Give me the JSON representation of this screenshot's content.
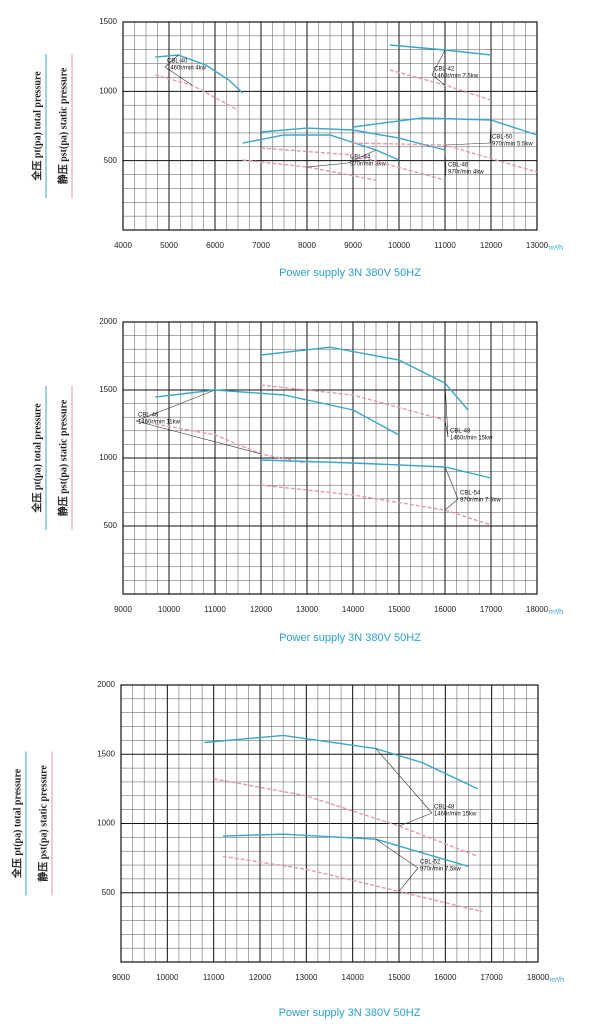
{
  "chart_data": [
    {
      "type": "line",
      "xlabel": "Power supply  3N 380V  50HZ",
      "xunit": "m³/h",
      "ylabels": [
        "全压 pt(pa)  total pressure",
        "静压 pst(pa) static pressure"
      ],
      "total_color": "#3aa6c8",
      "static_color": "#e39aa8",
      "xlim": [
        4000,
        13000
      ],
      "xticks": [
        4000,
        5000,
        6000,
        7000,
        8000,
        9000,
        10000,
        11000,
        12000,
        13000
      ],
      "ylim": [
        0,
        1500
      ],
      "yticks": [
        500,
        1000,
        1500
      ],
      "grid": true,
      "series": [
        {
          "name": "CBL-40",
          "note": "1460r/min 4kw",
          "total": {
            "x": [
              4700,
              5200,
              5800,
              6300,
              6600
            ],
            "values": [
              1247,
              1262,
              1190,
              1082,
              988
            ]
          },
          "static": {
            "x": [
              4700,
              5500,
              6500
            ],
            "values": [
              1118,
              1045,
              865
            ]
          }
        },
        {
          "name": "CBL-42",
          "note": "1460r/min 7.5kw",
          "total": {
            "x": [
              9800,
              11000,
              12000
            ],
            "values": [
              1334,
              1298,
              1262
            ]
          },
          "static": {
            "x": [
              9800,
              11000,
              12000
            ],
            "values": [
              1154,
              1045,
              937
            ]
          }
        },
        {
          "name": "CBL-44",
          "note": "970r/min 3kw",
          "total": {
            "x": [
              6600,
              7500,
              8500,
              9500,
              10000
            ],
            "values": [
              627,
              685,
              685,
              577,
              505
            ]
          },
          "static": {
            "x": [
              6600,
              8000,
              9500
            ],
            "values": [
              505,
              454,
              360
            ]
          }
        },
        {
          "name": "CBL-46",
          "note": "970r/min 4kw",
          "total": {
            "x": [
              7000,
              8000,
              9000,
              10000,
              11000
            ],
            "values": [
              707,
              735,
              721,
              663,
              577
            ]
          },
          "static": {
            "x": [
              7000,
              9000,
              11000
            ],
            "values": [
              591,
              541,
              360
            ]
          }
        },
        {
          "name": "CBL-50",
          "note": "970r/min 5.5kw",
          "total": {
            "x": [
              9000,
              10500,
              12000,
              13000
            ],
            "values": [
              743,
              808,
              793,
              685
            ]
          },
          "static": {
            "x": [
              9000,
              11000,
              13000
            ],
            "values": [
              627,
              613,
              418
            ]
          }
        }
      ]
    },
    {
      "type": "line",
      "xlabel": "Power supply  3N 380V  50HZ",
      "xunit": "m³/h",
      "ylabels": [
        "全压 pt(pa)  total pressure",
        "静压 pst(pa) static pressure"
      ],
      "total_color": "#3aa6c8",
      "static_color": "#e39aa8",
      "xlim": [
        9000,
        18000
      ],
      "xticks": [
        9000,
        10000,
        11000,
        12000,
        13000,
        14000,
        15000,
        16000,
        17000,
        18000
      ],
      "ylim": [
        0,
        2000
      ],
      "yticks": [
        500,
        1000,
        1500,
        2000
      ],
      "grid": true,
      "series": [
        {
          "name": "CBL-46",
          "note": "1460r/min 11kw",
          "total": {
            "x": [
              9700,
              11000,
              12500,
              14000,
              15000
            ],
            "values": [
              1448,
              1500,
              1463,
              1353,
              1169
            ]
          },
          "static": {
            "x": [
              9700,
              11000,
              12000,
              13000
            ],
            "values": [
              1250,
              1170,
              1030,
              960
            ]
          }
        },
        {
          "name": "CBL-48",
          "note": "1460r/min 15kw",
          "total": {
            "x": [
              12000,
              13500,
              15000,
              16000,
              16500
            ],
            "values": [
              1757,
              1815,
              1720,
              1551,
              1353
            ]
          },
          "static": {
            "x": [
              12000,
              14000,
              16000
            ],
            "values": [
              1536,
              1463,
              1279
            ]
          }
        },
        {
          "name": "CBL-54",
          "note": "970r/min 7.5kw",
          "total": {
            "x": [
              12000,
              14000,
              16000,
              17000
            ],
            "values": [
              985,
              963,
              934,
              853
            ]
          },
          "static": {
            "x": [
              12000,
              14000,
              16000,
              17000
            ],
            "values": [
              801,
              728,
              617,
              507
            ]
          }
        }
      ]
    },
    {
      "type": "line",
      "xlabel": "Power supply  3N 380V  50HZ",
      "xunit": "m³/h",
      "ylabels": [
        "全压 pt(pa)  total pressure",
        "静压 pst(pa) static pressure"
      ],
      "total_color": "#3aa6c8",
      "static_color": "#e39aa8",
      "xlim": [
        9000,
        18000
      ],
      "xticks": [
        9000,
        10000,
        11000,
        12000,
        13000,
        14000,
        15000,
        16000,
        17000,
        18000
      ],
      "ylim": [
        0,
        2000
      ],
      "yticks": [
        500,
        1000,
        1500,
        2000
      ],
      "grid": true,
      "series": [
        {
          "name": "CBL-48",
          "note": "1460r/min 15kw",
          "total": {
            "x": [
              10800,
              12500,
              14500,
              15500,
              16700
            ],
            "values": [
              1585,
              1636,
              1541,
              1440,
              1250
            ]
          },
          "static": {
            "x": [
              11000,
              13000,
              15000,
              16700
            ],
            "values": [
              1323,
              1200,
              981,
              763
            ]
          }
        },
        {
          "name": "CBL-52",
          "note": "970r/min 7.5kw",
          "total": {
            "x": [
              11200,
              12500,
              14500,
              16500
            ],
            "values": [
              909,
              923,
              887,
              690
            ]
          },
          "static": {
            "x": [
              11200,
              13000,
              15000,
              16800
            ],
            "values": [
              763,
              669,
              509,
              363
            ]
          }
        }
      ]
    }
  ]
}
